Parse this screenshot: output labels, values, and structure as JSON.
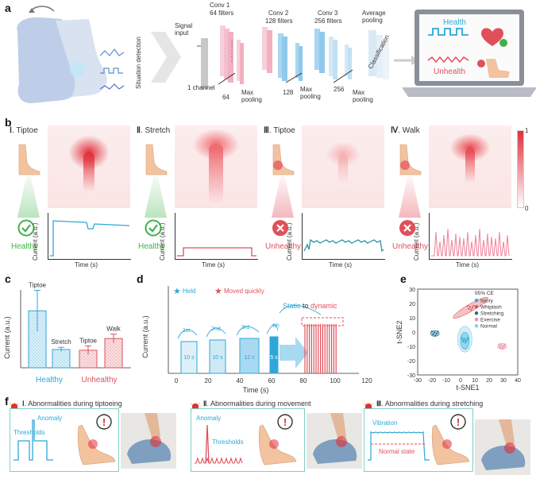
{
  "panel_letters": {
    "a": "a",
    "b": "b",
    "c": "c",
    "d": "d",
    "e": "e",
    "f": "f"
  },
  "panel_a": {
    "situation_detection": "Situation detection",
    "signal_input": "Signal\ninput",
    "one_channel": "1 channel",
    "conv1": "Conv 1",
    "conv1_filters": "64 filters",
    "conv2": "Conv 2",
    "conv2_filters": "128 filters",
    "conv3": "Conv 3",
    "conv3_filters": "256 filters",
    "avg_pool": "Average\npooling",
    "classification": "Classification",
    "n64": "64",
    "n128": "128",
    "n256": "256",
    "max_pooling_1": "Max\npooling",
    "max_pooling_2": "Max\npooling",
    "max_pooling_3": "Max\npooling",
    "health": "Health",
    "unhealth": "Unhealth",
    "colors": {
      "health": "#2ea7d8",
      "unhealth": "#e0505a",
      "conv": "#f4b8c8",
      "conv2": "#a8d6f0"
    }
  },
  "panel_b": {
    "scale_max": "1",
    "scale_min": "0",
    "states": [
      {
        "numeral": "Ⅰ",
        "label": ". Tiptoe",
        "status": "Healthy",
        "ok": true
      },
      {
        "numeral": "Ⅱ",
        "label": ". Stretch",
        "status": "Healthy",
        "ok": true
      },
      {
        "numeral": "Ⅲ",
        "label": ". Tiptoe",
        "status": "Unhealthy",
        "ok": false
      },
      {
        "numeral": "Ⅳ",
        "label": ". Walk",
        "status": "Unhealthy",
        "ok": false
      }
    ],
    "ylabel": "Current (a.u.)",
    "xlabel": "Time (s)"
  },
  "panel_c": {
    "ylabel": "Current (a.u.)",
    "healthy": "Healthy",
    "unhealthy": "Unhealthy",
    "bars": [
      {
        "label": "Tiptoe",
        "value": 0.78,
        "err": 0.28,
        "group": "healthy"
      },
      {
        "label": "Stretch",
        "value": 0.25,
        "err": 0.03,
        "group": "healthy"
      },
      {
        "label": "Tiptoe",
        "value": 0.24,
        "err": 0.06,
        "group": "unhealthy"
      },
      {
        "label": "Walk",
        "value": 0.4,
        "err": 0.06,
        "group": "unhealthy"
      }
    ]
  },
  "panel_d": {
    "legend_held": "Held",
    "legend_moved": "Moved quickly",
    "ylabel": "Current (a.u.)",
    "xlabel": "Time (s)",
    "xticks": [
      "0",
      "20",
      "40",
      "60",
      "80",
      "100",
      "120"
    ],
    "steps": [
      "1st",
      "2nd",
      "3rd",
      "4th"
    ],
    "durations": [
      "10 s",
      "10 s",
      "12 s",
      "5 s"
    ],
    "static_word": "Static",
    "to_word": "to",
    "dynamic_word": "dynamic"
  },
  "panel_e": {
    "xlabel": "t-SNE1",
    "ylabel": "t-SNE2",
    "xticks": [
      "-30",
      "-20",
      "-10",
      "0",
      "10",
      "20",
      "30",
      "40"
    ],
    "yticks": [
      "30",
      "20",
      "10",
      "0",
      "-10",
      "-20",
      "-30"
    ],
    "legend_title": "95% CE",
    "legend": [
      {
        "name": "Injury",
        "color": "#2ea7d8"
      },
      {
        "name": "Whiplash",
        "color": "#e0505a"
      },
      {
        "name": "Stretching",
        "color": "#1e6f8a"
      },
      {
        "name": "Exercise",
        "color": "#f08aa0"
      },
      {
        "name": "Normal",
        "color": "#7fd0e8"
      }
    ]
  },
  "panel_f": {
    "titles": [
      {
        "numeral": "Ⅰ",
        "text": ". Abnormalities during tiptoeing"
      },
      {
        "numeral": "Ⅱ",
        "text": ". Abnormalities during movement"
      },
      {
        "numeral": "Ⅲ",
        "text": ". Abnormalities during stretching"
      }
    ],
    "anomaly_1": "Anomaly",
    "thresholds_1": "Thresholds",
    "anomaly_2": "Anomaly",
    "thresholds_2": "Thresholds",
    "vibration": "Vibration",
    "normal_state": "Normal state",
    "alert": "!"
  }
}
